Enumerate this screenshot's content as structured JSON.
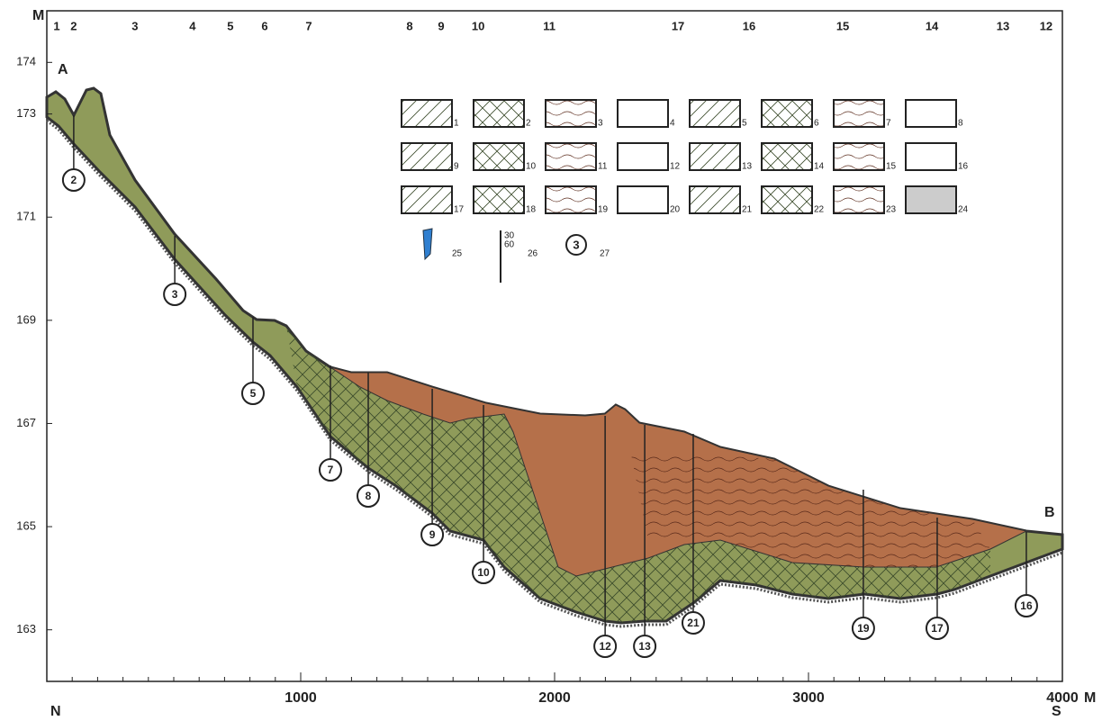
{
  "chart_data": {
    "type": "profile",
    "corner_labels": {
      "top_unit": "M",
      "right_unit": "M",
      "start": "A",
      "end": "B",
      "north": "N",
      "south": "S"
    },
    "xlim": [
      0,
      4000
    ],
    "ylim": [
      162,
      175
    ],
    "xticks": [
      1000,
      2000,
      3000,
      4000
    ],
    "yticks": [
      163,
      165,
      167,
      169,
      171,
      173,
      174
    ],
    "top_labels": [
      {
        "label": "1",
        "x": 39
      },
      {
        "label": "2",
        "x": 106
      },
      {
        "label": "3",
        "x": 347
      },
      {
        "label": "4",
        "x": 574
      },
      {
        "label": "5",
        "x": 723
      },
      {
        "label": "6",
        "x": 858
      },
      {
        "label": "7",
        "x": 1032
      },
      {
        "label": "8",
        "x": 1429
      },
      {
        "label": "9",
        "x": 1553
      },
      {
        "label": "10",
        "x": 1699
      },
      {
        "label": "11",
        "x": 1979
      },
      {
        "label": "17",
        "x": 2486
      },
      {
        "label": "16",
        "x": 2766
      },
      {
        "label": "15",
        "x": 3135
      },
      {
        "label": "14",
        "x": 3486
      },
      {
        "label": "13",
        "x": 3766
      },
      {
        "label": "12",
        "x": 3936
      }
    ],
    "boreholes": [
      {
        "label": "2",
        "x": 106
      },
      {
        "label": "3",
        "x": 504
      },
      {
        "label": "5",
        "x": 812
      },
      {
        "label": "7",
        "x": 1117
      },
      {
        "label": "8",
        "x": 1266
      },
      {
        "label": "9",
        "x": 1518
      },
      {
        "label": "10",
        "x": 1720
      },
      {
        "label": "12",
        "x": 2199
      },
      {
        "label": "13",
        "x": 2355
      },
      {
        "label": "21",
        "x": 2546
      },
      {
        "label": "19",
        "x": 3216
      },
      {
        "label": "17",
        "x": 3507
      },
      {
        "label": "16",
        "x": 3858
      }
    ],
    "legend": [
      "1",
      "2",
      "3",
      "4",
      "5",
      "6",
      "7",
      "8",
      "9",
      "10",
      "11",
      "12",
      "13",
      "14",
      "15",
      "16",
      "17",
      "18",
      "19",
      "20",
      "21",
      "22",
      "23",
      "24"
    ],
    "legend_extra": {
      "lens": "25",
      "borehole": "26",
      "borehole_depths": [
        "30",
        "60"
      ],
      "marker": "27",
      "marker_sample": "3"
    }
  }
}
